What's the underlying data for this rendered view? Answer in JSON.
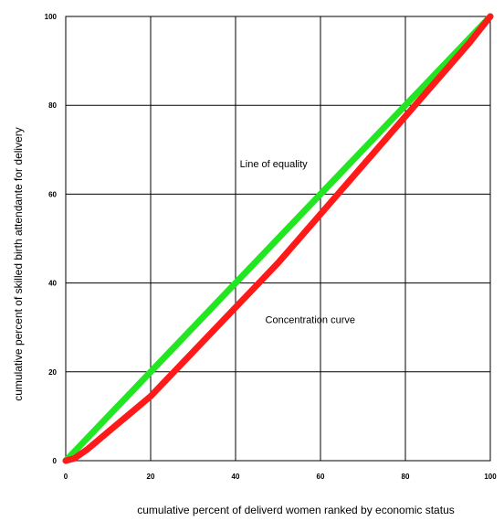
{
  "chart_data": {
    "type": "line",
    "title": "",
    "xlabel": "cumulative percent of deliverd women ranked by economic status",
    "ylabel": "cumulative percent of skilled birth attendante for delivery",
    "xlim": [
      0,
      100
    ],
    "ylim": [
      0,
      100
    ],
    "xticks": [
      "0",
      "20",
      "40",
      "60",
      "80",
      "100"
    ],
    "yticks": [
      "0",
      "20",
      "40",
      "60",
      "80",
      "100"
    ],
    "grid": true,
    "legend": "none",
    "series": [
      {
        "color": "#22e622",
        "x": [
          0,
          100
        ],
        "y": [
          0,
          100
        ]
      },
      {
        "color": "#ff1a1a",
        "x": [
          0,
          2,
          5,
          10,
          15,
          20,
          25,
          30,
          35,
          40,
          45,
          50,
          55,
          60,
          65,
          70,
          75,
          80,
          85,
          90,
          95,
          100
        ],
        "y": [
          0,
          0.5,
          2.5,
          6.5,
          10.5,
          14.5,
          19.5,
          24.5,
          29.5,
          34.5,
          39.5,
          44.5,
          50.0,
          55.5,
          61.0,
          66.5,
          72.0,
          77.5,
          83.0,
          88.5,
          94.0,
          100
        ]
      }
    ],
    "annotations": [
      {
        "text": "Line of equality",
        "x": 41,
        "y": 66
      },
      {
        "text": "Concentration curve",
        "x": 47,
        "y": 31
      }
    ]
  }
}
